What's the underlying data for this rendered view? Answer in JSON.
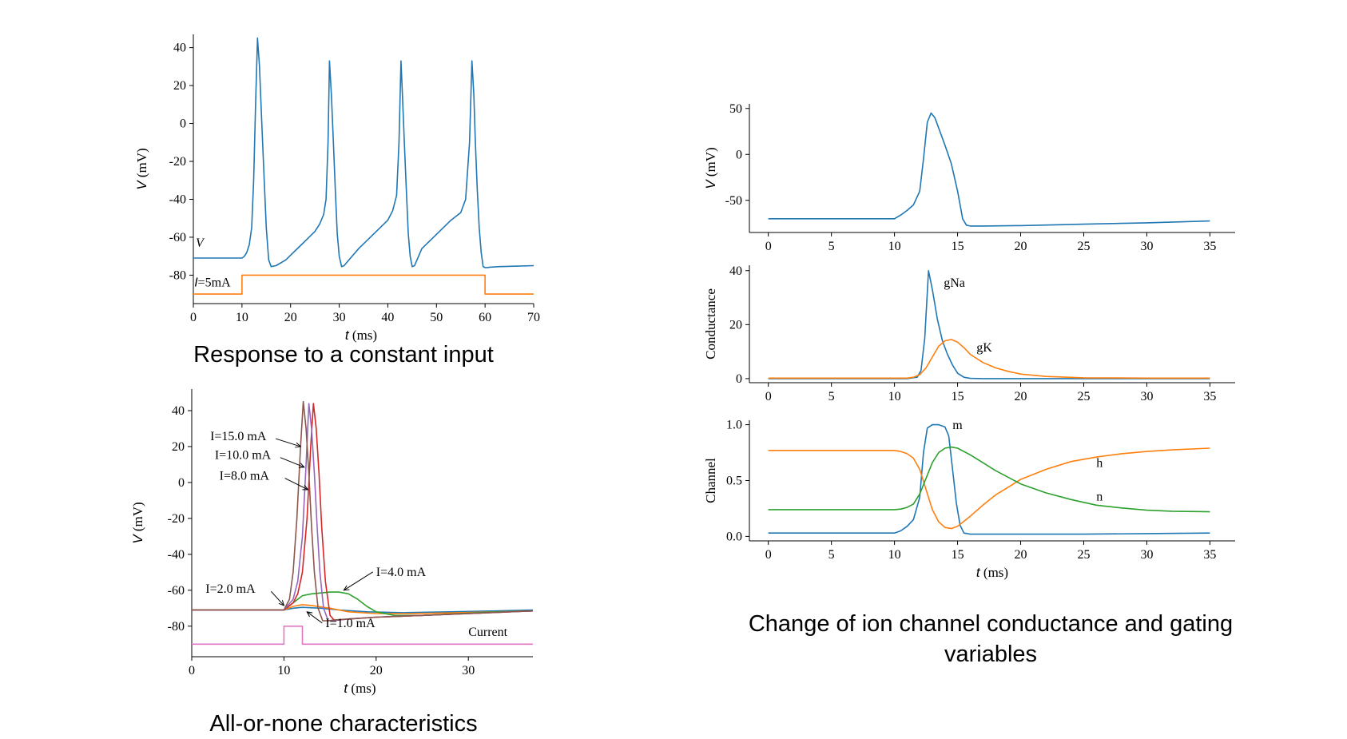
{
  "captions": {
    "top_left": "Response to a constant input",
    "bottom_left": "All-or-none characteristics",
    "right": "Change of ion channel conductance and gating variables"
  },
  "chart_data": [
    {
      "id": "constant-input",
      "type": "line",
      "xlabel": "t (ms)",
      "ylabel": "V (mV)",
      "xlim": [
        0,
        70
      ],
      "ylim": [
        -95,
        47
      ],
      "xticks": [
        0,
        10,
        20,
        30,
        40,
        50,
        60,
        70
      ],
      "yticks": [
        40,
        20,
        0,
        -20,
        -40,
        -60,
        -80
      ],
      "annotations": [
        {
          "text": "V",
          "at": [
            0.5,
            -65
          ]
        },
        {
          "text": "I=5mA",
          "at": [
            0.2,
            -86
          ]
        }
      ],
      "series": [
        {
          "name": "V",
          "color": "#1f77b4",
          "x": [
            0,
            9,
            10,
            10.5,
            11,
            11.5,
            12,
            12.4,
            12.8,
            13.2,
            13.6,
            14,
            14.5,
            15,
            15.5,
            16,
            17,
            19,
            21,
            23,
            25,
            26,
            26.8,
            27.3,
            27.7,
            28,
            28.4,
            28.8,
            29.2,
            29.6,
            30,
            30.5,
            31,
            32,
            34,
            36,
            38,
            40,
            41,
            41.8,
            42.3,
            42.7,
            43,
            43.4,
            43.8,
            44.2,
            44.6,
            45,
            45.5,
            46,
            47,
            49,
            51,
            53,
            55,
            56,
            56.8,
            57.3,
            57.7,
            58,
            58.4,
            58.8,
            59.2,
            59.6,
            60,
            60.5,
            61,
            63,
            66,
            70
          ],
          "y": [
            -71,
            -71,
            -71,
            -70,
            -68,
            -64,
            -55,
            -30,
            10,
            45,
            30,
            5,
            -25,
            -55,
            -72,
            -75.5,
            -75,
            -72,
            -67,
            -62,
            -57,
            -53,
            -48,
            -40,
            -10,
            33,
            15,
            -10,
            -35,
            -58,
            -70,
            -75.5,
            -75,
            -72,
            -66,
            -61,
            -56,
            -51,
            -46,
            -38,
            -10,
            33,
            15,
            -10,
            -35,
            -58,
            -70,
            -75.5,
            -75,
            -72,
            -66,
            -61,
            -56,
            -51,
            -47,
            -40,
            -10,
            33,
            15,
            -10,
            -35,
            -55,
            -68,
            -75.5,
            -76,
            -76,
            -75.8,
            -75.5,
            -75.3,
            -75
          ]
        },
        {
          "name": "I",
          "color": "#ff7f0e",
          "x": [
            0,
            10,
            10,
            60,
            60,
            70
          ],
          "y": [
            -90,
            -90,
            -80,
            -80,
            -90,
            -90
          ]
        }
      ]
    },
    {
      "id": "all-or-none",
      "type": "line",
      "xlabel": "t (ms)",
      "ylabel": "V (mV)",
      "xlim": [
        0,
        37
      ],
      "ylim": [
        -97,
        52
      ],
      "xticks": [
        0,
        10,
        20,
        30
      ],
      "yticks": [
        40,
        20,
        0,
        -20,
        -40,
        -60,
        -80
      ],
      "annotations": [
        {
          "text": "I=15.0 mA",
          "at": [
            2,
            23.5
          ],
          "arrow_to": [
            11.8,
            20
          ]
        },
        {
          "text": "I=10.0 mA",
          "at": [
            2.5,
            13
          ],
          "arrow_to": [
            12.2,
            8.5
          ]
        },
        {
          "text": "I=8.0 mA",
          "at": [
            3,
            1.5
          ],
          "arrow_to": [
            12.6,
            -4
          ]
        },
        {
          "text": "I=4.0 mA",
          "at": [
            20,
            -52
          ],
          "arrow_to": [
            16.5,
            -60
          ]
        },
        {
          "text": "I=2.0 mA",
          "at": [
            1.5,
            -61.5
          ],
          "arrow_to": [
            10,
            -68.5
          ]
        },
        {
          "text": "I=1.0 mA",
          "at": [
            14.5,
            -80.5
          ],
          "arrow_to": [
            12.5,
            -72
          ]
        },
        {
          "text": "Current",
          "at": [
            30,
            -85.5
          ]
        }
      ],
      "series": [
        {
          "name": "I=1.0 mA",
          "color": "#1f77b4",
          "x": [
            0,
            10,
            11,
            12,
            14,
            16,
            19,
            23,
            28,
            33,
            37
          ],
          "y": [
            -71,
            -71,
            -70,
            -69.5,
            -70,
            -71,
            -72,
            -72.5,
            -72,
            -71.5,
            -71
          ]
        },
        {
          "name": "I=2.0 mA",
          "color": "#ff7f0e",
          "x": [
            0,
            10,
            11,
            12,
            13,
            15,
            17,
            20,
            24,
            29,
            33,
            37
          ],
          "y": [
            -71,
            -71,
            -69,
            -68,
            -68.5,
            -70,
            -72,
            -73,
            -73,
            -72.5,
            -72,
            -71.5
          ]
        },
        {
          "name": "I=4.0 mA",
          "color": "#2ca02c",
          "x": [
            0,
            10,
            11,
            12,
            13,
            14,
            15,
            16,
            17,
            18,
            19,
            20,
            22,
            25,
            29,
            33,
            37
          ],
          "y": [
            -71,
            -71,
            -67,
            -63,
            -62,
            -61.5,
            -61,
            -61,
            -62,
            -65,
            -69,
            -72,
            -74,
            -74,
            -73,
            -72,
            -71.5
          ]
        },
        {
          "name": "I=8.0 mA",
          "color": "#d62728",
          "x": [
            0,
            10,
            11,
            11.5,
            12,
            12.5,
            12.9,
            13.2,
            13.5,
            13.8,
            14.1,
            14.5,
            15,
            15.5,
            16,
            17,
            20,
            25,
            30,
            37
          ],
          "y": [
            -71,
            -71,
            -67,
            -62,
            -50,
            -20,
            20,
            44,
            30,
            5,
            -25,
            -55,
            -74,
            -77,
            -76.5,
            -76,
            -75,
            -74,
            -73,
            -71.5
          ]
        },
        {
          "name": "I=10.0 mA",
          "color": "#9467bd",
          "x": [
            0,
            10,
            11,
            11.5,
            12,
            12.4,
            12.7,
            13.0,
            13.3,
            13.6,
            13.9,
            14.3,
            14.8,
            15.3,
            16,
            17,
            20,
            25,
            30,
            37
          ],
          "y": [
            -71,
            -71,
            -65,
            -55,
            -30,
            10,
            44,
            30,
            5,
            -25,
            -50,
            -70,
            -77,
            -77,
            -76.5,
            -76,
            -75,
            -74,
            -73,
            -71.5
          ]
        },
        {
          "name": "I=15.0 mA",
          "color": "#8c564b",
          "x": [
            0,
            10,
            10.6,
            11,
            11.4,
            11.8,
            12.1,
            12.4,
            12.7,
            13.0,
            13.3,
            13.7,
            14.2,
            14.8,
            15.5,
            17,
            20,
            25,
            30,
            37
          ],
          "y": [
            -71,
            -71,
            -65,
            -50,
            -20,
            20,
            45,
            30,
            5,
            -25,
            -50,
            -70,
            -77,
            -77,
            -76.5,
            -76,
            -75,
            -74,
            -73,
            -71.5
          ]
        },
        {
          "name": "Current",
          "color": "#e377c2",
          "x": [
            0,
            10,
            10,
            12,
            12,
            37
          ],
          "y": [
            -90,
            -90,
            -80,
            -80,
            -90,
            -90
          ]
        }
      ]
    },
    {
      "id": "voltage-single",
      "type": "line",
      "xlabel": "",
      "ylabel": "V (mV)",
      "xlim": [
        -1.5,
        37
      ],
      "ylim": [
        -85,
        55
      ],
      "xticks": [
        0,
        5,
        10,
        15,
        20,
        25,
        30,
        35
      ],
      "yticks": [
        50,
        0,
        -50
      ],
      "series": [
        {
          "name": "V",
          "color": "#1f77b4",
          "x": [
            0,
            10,
            10.5,
            11,
            11.5,
            12,
            12.3,
            12.6,
            12.9,
            13.2,
            13.6,
            14,
            14.5,
            15,
            15.4,
            15.7,
            16,
            17,
            20,
            25,
            30,
            35
          ],
          "y": [
            -70,
            -70,
            -66,
            -61,
            -55,
            -40,
            -5,
            35,
            45,
            40,
            25,
            10,
            -10,
            -40,
            -70,
            -77,
            -78,
            -78,
            -77.5,
            -76,
            -74.5,
            -72.5
          ]
        }
      ]
    },
    {
      "id": "conductance",
      "type": "line",
      "xlabel": "",
      "ylabel": "Conductance",
      "xlim": [
        -1.5,
        37
      ],
      "ylim": [
        -1.5,
        42
      ],
      "xticks": [
        0,
        5,
        10,
        15,
        20,
        25,
        30,
        35
      ],
      "yticks": [
        40,
        20,
        0
      ],
      "annotations": [
        {
          "text": "gNa",
          "at": [
            13.9,
            34
          ]
        },
        {
          "text": "gK",
          "at": [
            16.5,
            10
          ]
        }
      ],
      "series": [
        {
          "name": "gNa",
          "color": "#1f77b4",
          "x": [
            0,
            11,
            11.8,
            12.1,
            12.4,
            12.7,
            13.0,
            13.4,
            13.8,
            14.2,
            14.6,
            15,
            15.5,
            16,
            17,
            20,
            35
          ],
          "y": [
            0,
            0,
            0.5,
            3,
            15,
            40,
            33,
            22,
            14,
            9,
            5,
            2,
            0.5,
            0.1,
            0,
            0,
            0
          ]
        },
        {
          "name": "gK",
          "color": "#ff7f0e",
          "x": [
            0,
            11,
            11.5,
            12,
            12.5,
            13,
            13.5,
            14,
            14.5,
            15,
            15.5,
            16,
            17,
            18,
            19,
            20,
            22,
            25,
            30,
            35
          ],
          "y": [
            0.2,
            0.2,
            0.5,
            1.5,
            4,
            8,
            12,
            14,
            14.5,
            13.5,
            11.5,
            9,
            6,
            4,
            2.7,
            1.7,
            0.8,
            0.3,
            0.2,
            0.2
          ]
        }
      ]
    },
    {
      "id": "channel",
      "type": "line",
      "xlabel": "t (ms)",
      "ylabel": "Channel",
      "xlim": [
        -1.5,
        37
      ],
      "ylim": [
        -0.04,
        1.04
      ],
      "xticks": [
        0,
        5,
        10,
        15,
        20,
        25,
        30,
        35
      ],
      "yticks": [
        1.0,
        0.5,
        0.0
      ],
      "annotations": [
        {
          "text": "m",
          "at": [
            14.6,
            0.96
          ]
        },
        {
          "text": "h",
          "at": [
            26,
            0.62
          ]
        },
        {
          "text": "n",
          "at": [
            26,
            0.32
          ]
        }
      ],
      "series": [
        {
          "name": "m",
          "color": "#1f77b4",
          "x": [
            0,
            10,
            10.5,
            11,
            11.5,
            12,
            12.3,
            12.6,
            13,
            13.5,
            14,
            14.3,
            14.6,
            14.9,
            15.2,
            15.5,
            16,
            18,
            20,
            25,
            30,
            35
          ],
          "y": [
            0.03,
            0.03,
            0.05,
            0.09,
            0.15,
            0.35,
            0.75,
            0.97,
            1.0,
            1.0,
            0.98,
            0.9,
            0.6,
            0.3,
            0.1,
            0.03,
            0.02,
            0.02,
            0.02,
            0.02,
            0.025,
            0.03
          ]
        },
        {
          "name": "h",
          "color": "#ff7f0e",
          "x": [
            0,
            10,
            10.5,
            11,
            11.5,
            12,
            12.5,
            13,
            13.5,
            14,
            14.5,
            15,
            16,
            17,
            18,
            19,
            20,
            22,
            24,
            26,
            28,
            30,
            32,
            35
          ],
          "y": [
            0.77,
            0.77,
            0.76,
            0.74,
            0.7,
            0.6,
            0.42,
            0.24,
            0.13,
            0.08,
            0.07,
            0.09,
            0.18,
            0.28,
            0.37,
            0.44,
            0.51,
            0.6,
            0.67,
            0.71,
            0.74,
            0.76,
            0.775,
            0.79
          ]
        },
        {
          "name": "n",
          "color": "#2ca02c",
          "x": [
            0,
            10,
            10.5,
            11,
            11.5,
            12,
            12.5,
            13,
            13.5,
            14,
            14.5,
            15,
            16,
            17,
            18,
            19,
            20,
            22,
            24,
            26,
            28,
            30,
            32,
            35
          ],
          "y": [
            0.24,
            0.24,
            0.245,
            0.26,
            0.29,
            0.38,
            0.52,
            0.66,
            0.75,
            0.79,
            0.8,
            0.79,
            0.73,
            0.66,
            0.59,
            0.53,
            0.47,
            0.39,
            0.33,
            0.28,
            0.255,
            0.235,
            0.225,
            0.22
          ]
        }
      ]
    }
  ]
}
